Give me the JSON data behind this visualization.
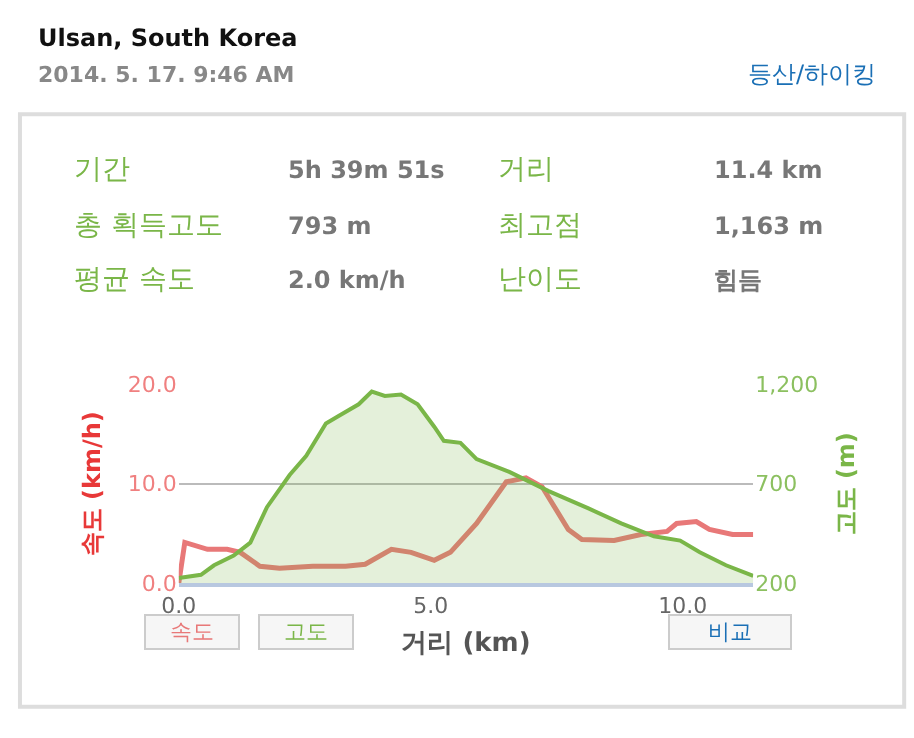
{
  "chart_data": [
    {
      "type": "other",
      "title": "Ulsan, South Korea",
      "subtitle": "2014. 5. 17. 9:46 AM",
      "annotations": [
        "등산/하이킹",
        "기간",
        "5h 39m 51s",
        "거리",
        "11.4 km",
        "총 획득고도",
        "793 m",
        "최고점",
        "1,163 m",
        "평균 속도",
        "2.0 km/h",
        "난이도",
        "힘듬"
      ]
    },
    {
      "type": "line",
      "xlabel": "거리 (km)",
      "ylabel": "속도 (km/h)",
      "y2label": "고도 (m)",
      "annotations": [
        "비교"
      ],
      "xlim": [
        0,
        11.4
      ],
      "xticks": [
        {
          "value": 0,
          "label": "0.0"
        },
        {
          "value": 5,
          "label": "5.0"
        },
        {
          "value": 10,
          "label": "10.0"
        }
      ],
      "ylim": [
        0,
        20
      ],
      "yticks": [
        {
          "value": 0,
          "label": "0.0"
        },
        {
          "value": 10,
          "label": "10.0"
        },
        {
          "value": 20,
          "label": "20.0"
        }
      ],
      "y2lim": [
        200,
        1200
      ],
      "y2ticks": [
        200,
        700,
        {
          "value": 1200,
          "label": "1,200"
        }
      ],
      "grid": "y",
      "series": [
        {
          "name": "속도",
          "color": "#e87878",
          "axis": "y",
          "x": [
            0,
            0.12,
            0.57,
            0.96,
            1.22,
            1.61,
            2.0,
            2.66,
            3.31,
            3.7,
            4.22,
            4.61,
            5.07,
            5.39,
            5.91,
            6.5,
            6.89,
            7.21,
            7.73,
            8.0,
            8.64,
            9.17,
            9.69,
            9.88,
            10.27,
            10.53,
            10.99,
            11.4
          ],
          "values": [
            0,
            4.1,
            3.4,
            3.4,
            3.1,
            1.7,
            1.5,
            1.7,
            1.7,
            1.9,
            3.4,
            3.1,
            2.3,
            3.1,
            6.0,
            10.2,
            10.6,
            9.7,
            5.4,
            4.4,
            4.3,
            4.9,
            5.2,
            6.0,
            6.2,
            5.4,
            4.9,
            4.9
          ]
        },
        {
          "name": "고도",
          "color": "#7ab648",
          "type": "area",
          "axis": "y2",
          "x": [
            0,
            0.44,
            0.7,
            1.09,
            1.42,
            1.75,
            2.2,
            2.53,
            2.92,
            3.18,
            3.57,
            3.83,
            4.09,
            4.41,
            4.74,
            5.07,
            5.26,
            5.59,
            5.91,
            6.56,
            7.34,
            8.13,
            8.78,
            9.43,
            9.95,
            10.34,
            10.86,
            11.4
          ],
          "values": [
            226,
            242,
            290,
            339,
            404,
            582,
            744,
            841,
            1003,
            1042,
            1100,
            1164,
            1142,
            1149,
            1100,
            987,
            916,
            906,
            824,
            760,
            663,
            576,
            501,
            436,
            414,
            355,
            290,
            236
          ]
        }
      ]
    }
  ]
}
